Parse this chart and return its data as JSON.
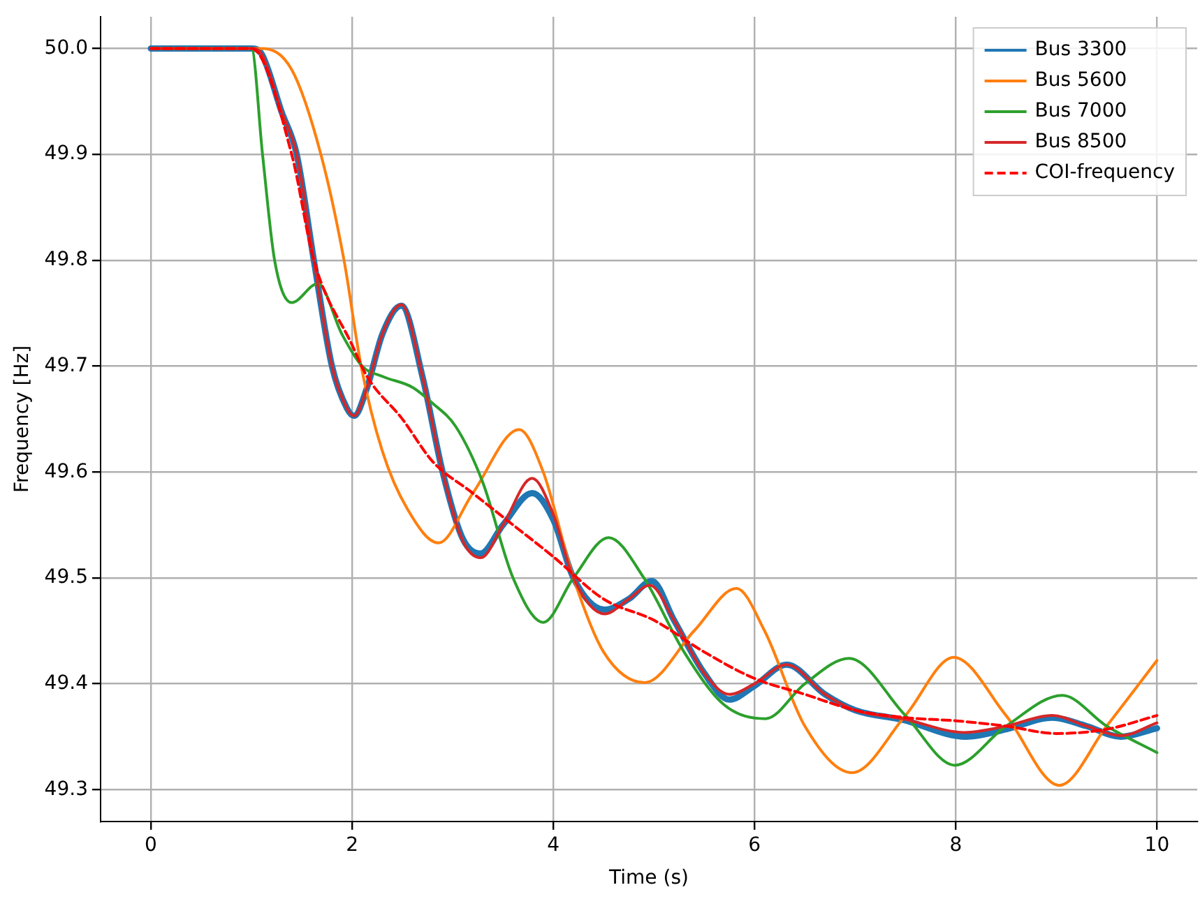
{
  "chart_data": {
    "type": "line",
    "xlabel": "Time (s)",
    "ylabel": "Frequency [Hz]",
    "xlim": [
      -0.5,
      10.4
    ],
    "xticks": [
      0,
      2,
      4,
      6,
      8,
      10
    ],
    "ylim": [
      49.27,
      50.03
    ],
    "yticks": [
      {
        "value": 49.3,
        "label": "49.3"
      },
      {
        "value": 49.4,
        "label": "49.4"
      },
      {
        "value": 49.5,
        "label": "49.5"
      },
      {
        "value": 49.6,
        "label": "49.6"
      },
      {
        "value": 49.7,
        "label": "49.7"
      },
      {
        "value": 49.8,
        "label": "49.8"
      },
      {
        "value": 49.9,
        "label": "49.9"
      },
      {
        "value": 50.0,
        "label": "50.0"
      }
    ],
    "grid": true,
    "legend": "top right",
    "marker": "none",
    "series": [
      {
        "name": "Bus 3300",
        "color": "#1f77b4",
        "x": [
          0,
          1.0,
          1.1,
          1.3,
          1.45,
          1.62,
          1.8,
          1.95,
          2.02,
          2.15,
          2.3,
          2.49,
          2.7,
          2.9,
          3.1,
          3.28,
          3.5,
          3.79,
          4.0,
          4.2,
          4.51,
          4.75,
          4.98,
          5.2,
          5.5,
          5.75,
          6.0,
          6.32,
          6.7,
          7.0,
          7.47,
          8.1,
          8.5,
          8.96,
          9.3,
          9.64,
          10
        ],
        "values": [
          50.0,
          50.0,
          49.995,
          49.94,
          49.9,
          49.8,
          49.7,
          49.66,
          49.653,
          49.68,
          49.73,
          49.757,
          49.69,
          49.6,
          49.537,
          49.523,
          49.55,
          49.58,
          49.555,
          49.5,
          49.47,
          49.48,
          49.497,
          49.46,
          49.41,
          49.385,
          49.398,
          49.418,
          49.39,
          49.375,
          49.366,
          49.35,
          49.357,
          49.368,
          49.36,
          49.35,
          49.358
        ]
      },
      {
        "name": "Bus 5600",
        "color": "#ff7f0e",
        "x": [
          0,
          1.1,
          1.4,
          1.69,
          1.92,
          2.09,
          2.3,
          2.55,
          2.86,
          3.2,
          3.66,
          3.9,
          4.2,
          4.5,
          4.91,
          5.4,
          5.82,
          6.1,
          6.5,
          6.97,
          7.5,
          7.98,
          8.5,
          9.03,
          9.5,
          10
        ],
        "values": [
          50.0,
          50.0,
          49.98,
          49.9,
          49.8,
          49.7,
          49.62,
          49.565,
          49.533,
          49.58,
          49.64,
          49.6,
          49.5,
          49.43,
          49.401,
          49.45,
          49.49,
          49.45,
          49.36,
          49.316,
          49.37,
          49.425,
          49.37,
          49.304,
          49.36,
          49.422
        ]
      },
      {
        "name": "Bus 7000",
        "color": "#2ca02c",
        "x": [
          0,
          1.0,
          1.11,
          1.23,
          1.4,
          1.66,
          1.9,
          2.1,
          2.31,
          2.6,
          2.8,
          3.03,
          3.3,
          3.6,
          3.9,
          4.2,
          4.55,
          4.9,
          5.3,
          5.7,
          6.11,
          6.5,
          6.94,
          7.5,
          7.99,
          8.5,
          9.06,
          9.5,
          10
        ],
        "values": [
          50.0,
          50.0,
          49.9,
          49.8,
          49.76,
          49.778,
          49.73,
          49.7,
          49.69,
          49.68,
          49.665,
          49.643,
          49.59,
          49.5,
          49.458,
          49.5,
          49.538,
          49.5,
          49.43,
          49.38,
          49.367,
          49.4,
          49.424,
          49.37,
          49.323,
          49.36,
          49.389,
          49.36,
          49.335
        ]
      },
      {
        "name": "Bus 8500",
        "color": "#d62728",
        "x": [
          0,
          1.0,
          1.1,
          1.3,
          1.45,
          1.62,
          1.8,
          1.95,
          2.02,
          2.15,
          2.3,
          2.49,
          2.7,
          2.9,
          3.1,
          3.28,
          3.5,
          3.79,
          4.0,
          4.2,
          4.51,
          4.75,
          4.96,
          5.2,
          5.5,
          5.75,
          6.0,
          6.32,
          6.7,
          7.0,
          7.47,
          8.09,
          8.5,
          8.96,
          9.3,
          9.64,
          10
        ],
        "values": [
          50.0,
          50.0,
          49.995,
          49.94,
          49.9,
          49.8,
          49.7,
          49.66,
          49.653,
          49.68,
          49.73,
          49.758,
          49.69,
          49.6,
          49.535,
          49.519,
          49.55,
          49.594,
          49.56,
          49.5,
          49.466,
          49.48,
          49.493,
          49.46,
          49.41,
          49.39,
          49.4,
          49.418,
          49.39,
          49.375,
          49.367,
          49.354,
          49.36,
          49.37,
          49.36,
          49.351,
          49.363
        ]
      },
      {
        "name": "COI-frequency",
        "color": "#ff0000",
        "line_style": "dashed",
        "x": [
          0,
          1.0,
          1.4,
          1.62,
          2.0,
          2.15,
          2.5,
          2.8,
          3.2,
          3.6,
          4.0,
          4.5,
          5.0,
          5.5,
          6.0,
          6.5,
          7.0,
          7.5,
          8.0,
          8.5,
          9.0,
          9.5,
          10
        ],
        "values": [
          50.0,
          50.0,
          49.9,
          49.8,
          49.72,
          49.69,
          49.65,
          49.61,
          49.58,
          49.55,
          49.52,
          49.48,
          49.46,
          49.43,
          49.405,
          49.39,
          49.375,
          49.368,
          49.365,
          49.36,
          49.353,
          49.357,
          49.37
        ]
      }
    ]
  }
}
